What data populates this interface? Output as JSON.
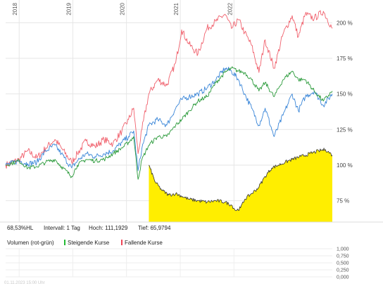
{
  "colors": {
    "red": "#f0606c",
    "blue": "#3a86d8",
    "green": "#2a9a3a",
    "black": "#333333",
    "yellow": "#ffee00",
    "grid": "#e6e6e6",
    "rising": "#22bb33",
    "falling": "#ee4455"
  },
  "info_bar": {
    "performance": "68,53%HL",
    "interval": "Intervall: 1 Tag",
    "high": "Hoch: 111,1929",
    "low": "Tief: 65,9794"
  },
  "volume": {
    "title": "Volumen (rot-grün)",
    "rising_label": "Steigende Kurse",
    "falling_label": "Fallende Kurse",
    "ticks": [
      "1,000",
      "0,750",
      "0,500",
      "0,250",
      "0,000"
    ]
  },
  "footer": "01.11.2023 15:00 Uhr",
  "chart_data": {
    "type": "line",
    "x_range": [
      "2017-10-01",
      "2023-11-01"
    ],
    "x_ticks": [
      "2018",
      "2019",
      "2020",
      "2021",
      "2022"
    ],
    "y_ticks": [
      "200 %",
      "175 %",
      "150 %",
      "125 %",
      "100 %",
      "75 %"
    ],
    "y_tick_values": [
      200,
      175,
      150,
      125,
      100,
      75
    ],
    "ylim": [
      60,
      212
    ],
    "grid": true,
    "series": [
      {
        "color_key": "red",
        "points": [
          [
            "2017-10-01",
            100
          ],
          [
            "2018-01-01",
            104
          ],
          [
            "2018-03-01",
            110
          ],
          [
            "2018-05-01",
            105
          ],
          [
            "2018-07-01",
            112
          ],
          [
            "2018-09-01",
            118
          ],
          [
            "2018-10-15",
            112
          ],
          [
            "2018-12-24",
            102
          ],
          [
            "2019-02-01",
            108
          ],
          [
            "2019-04-01",
            117
          ],
          [
            "2019-06-01",
            113
          ],
          [
            "2019-08-01",
            118
          ],
          [
            "2019-10-01",
            115
          ],
          [
            "2019-12-01",
            124
          ],
          [
            "2020-01-15",
            132
          ],
          [
            "2020-02-19",
            140
          ],
          [
            "2020-03-20",
            108
          ],
          [
            "2020-04-15",
            125
          ],
          [
            "2020-06-01",
            150
          ],
          [
            "2020-08-01",
            160
          ],
          [
            "2020-10-01",
            156
          ],
          [
            "2020-12-01",
            172
          ],
          [
            "2021-01-10",
            195
          ],
          [
            "2021-03-01",
            185
          ],
          [
            "2021-05-01",
            178
          ],
          [
            "2021-07-01",
            196
          ],
          [
            "2021-09-01",
            201
          ],
          [
            "2021-11-01",
            206
          ],
          [
            "2021-12-15",
            196
          ],
          [
            "2022-02-01",
            202
          ],
          [
            "2022-03-15",
            193
          ],
          [
            "2022-05-01",
            184
          ],
          [
            "2022-06-20",
            165
          ],
          [
            "2022-08-01",
            188
          ],
          [
            "2022-10-01",
            168
          ],
          [
            "2022-12-01",
            192
          ],
          [
            "2023-02-01",
            205
          ],
          [
            "2023-03-15",
            190
          ],
          [
            "2023-05-01",
            206
          ],
          [
            "2023-07-01",
            203
          ],
          [
            "2023-09-01",
            208
          ],
          [
            "2023-11-01",
            196
          ]
        ]
      },
      {
        "color_key": "blue",
        "points": [
          [
            "2017-10-01",
            100
          ],
          [
            "2018-01-01",
            103
          ],
          [
            "2018-03-01",
            101
          ],
          [
            "2018-05-01",
            102
          ],
          [
            "2018-07-01",
            110
          ],
          [
            "2018-09-01",
            114
          ],
          [
            "2018-10-15",
            108
          ],
          [
            "2018-12-24",
            98
          ],
          [
            "2019-02-01",
            103
          ],
          [
            "2019-04-01",
            108
          ],
          [
            "2019-06-01",
            106
          ],
          [
            "2019-08-01",
            108
          ],
          [
            "2019-10-01",
            110
          ],
          [
            "2019-12-01",
            116
          ],
          [
            "2020-01-15",
            120
          ],
          [
            "2020-02-19",
            124
          ],
          [
            "2020-03-20",
            96
          ],
          [
            "2020-04-15",
            112
          ],
          [
            "2020-06-01",
            128
          ],
          [
            "2020-08-01",
            132
          ],
          [
            "2020-10-01",
            128
          ],
          [
            "2020-12-01",
            140
          ],
          [
            "2021-01-10",
            146
          ],
          [
            "2021-03-01",
            148
          ],
          [
            "2021-05-01",
            150
          ],
          [
            "2021-07-01",
            154
          ],
          [
            "2021-09-01",
            160
          ],
          [
            "2021-11-01",
            168
          ],
          [
            "2021-12-15",
            166
          ],
          [
            "2022-02-01",
            160
          ],
          [
            "2022-03-15",
            150
          ],
          [
            "2022-05-01",
            140
          ],
          [
            "2022-06-20",
            128
          ],
          [
            "2022-08-01",
            140
          ],
          [
            "2022-10-01",
            120
          ],
          [
            "2022-12-01",
            135
          ],
          [
            "2023-02-01",
            150
          ],
          [
            "2023-03-15",
            138
          ],
          [
            "2023-05-01",
            148
          ],
          [
            "2023-07-01",
            152
          ],
          [
            "2023-09-01",
            142
          ],
          [
            "2023-11-01",
            150
          ]
        ]
      },
      {
        "color_key": "green",
        "points": [
          [
            "2017-10-01",
            100
          ],
          [
            "2018-01-01",
            103
          ],
          [
            "2018-03-01",
            98
          ],
          [
            "2018-05-01",
            99
          ],
          [
            "2018-07-01",
            102
          ],
          [
            "2018-09-01",
            104
          ],
          [
            "2018-10-15",
            99
          ],
          [
            "2018-12-24",
            92
          ],
          [
            "2019-02-01",
            100
          ],
          [
            "2019-04-01",
            104
          ],
          [
            "2019-06-01",
            103
          ],
          [
            "2019-08-01",
            104
          ],
          [
            "2019-10-01",
            108
          ],
          [
            "2019-12-01",
            112
          ],
          [
            "2020-01-15",
            116
          ],
          [
            "2020-02-19",
            120
          ],
          [
            "2020-03-20",
            90
          ],
          [
            "2020-04-15",
            104
          ],
          [
            "2020-06-01",
            114
          ],
          [
            "2020-08-01",
            120
          ],
          [
            "2020-10-01",
            120
          ],
          [
            "2020-12-01",
            128
          ],
          [
            "2021-01-10",
            132
          ],
          [
            "2021-03-01",
            138
          ],
          [
            "2021-05-01",
            145
          ],
          [
            "2021-07-01",
            148
          ],
          [
            "2021-09-01",
            158
          ],
          [
            "2021-11-01",
            165
          ],
          [
            "2021-12-15",
            168
          ],
          [
            "2022-02-01",
            166
          ],
          [
            "2022-03-15",
            165
          ],
          [
            "2022-05-01",
            160
          ],
          [
            "2022-06-20",
            152
          ],
          [
            "2022-08-01",
            158
          ],
          [
            "2022-10-01",
            148
          ],
          [
            "2022-12-01",
            160
          ],
          [
            "2023-02-01",
            166
          ],
          [
            "2023-03-15",
            160
          ],
          [
            "2023-05-01",
            160
          ],
          [
            "2023-07-01",
            152
          ],
          [
            "2023-09-01",
            145
          ],
          [
            "2023-11-01",
            152
          ]
        ]
      },
      {
        "color_key": "black",
        "area": true,
        "points": [
          [
            "2020-06-01",
            100
          ],
          [
            "2020-07-15",
            88
          ],
          [
            "2020-09-01",
            82
          ],
          [
            "2020-10-15",
            79
          ],
          [
            "2020-12-01",
            80
          ],
          [
            "2021-01-15",
            78
          ],
          [
            "2021-03-01",
            76
          ],
          [
            "2021-05-01",
            75
          ],
          [
            "2021-07-01",
            74
          ],
          [
            "2021-09-01",
            75
          ],
          [
            "2021-11-01",
            74
          ],
          [
            "2021-12-15",
            72
          ],
          [
            "2022-01-15",
            68
          ],
          [
            "2022-02-15",
            70
          ],
          [
            "2022-03-15",
            76
          ],
          [
            "2022-05-01",
            80
          ],
          [
            "2022-06-15",
            84
          ],
          [
            "2022-08-01",
            92
          ],
          [
            "2022-09-15",
            98
          ],
          [
            "2022-11-01",
            100
          ],
          [
            "2022-12-15",
            102
          ],
          [
            "2023-02-01",
            104
          ],
          [
            "2023-04-01",
            106
          ],
          [
            "2023-06-01",
            108
          ],
          [
            "2023-08-01",
            110
          ],
          [
            "2023-09-15",
            111
          ],
          [
            "2023-11-01",
            107
          ]
        ]
      }
    ]
  }
}
